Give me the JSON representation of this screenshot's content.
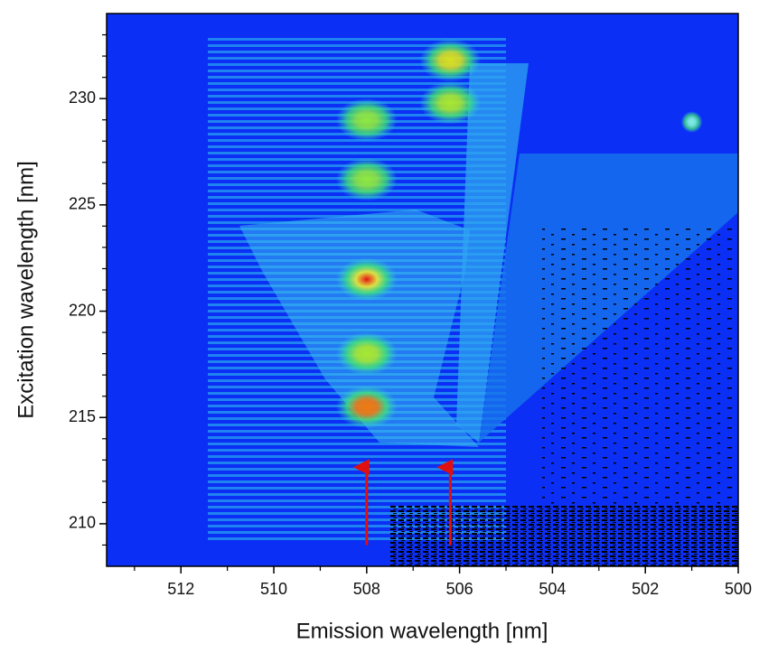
{
  "chart_data": {
    "type": "heatmap",
    "x_label": "Emission wavelength [nm]",
    "y_label": "Excitation wavelength [nm]",
    "xlim": [
      513.6,
      500
    ],
    "ylim": [
      208,
      234
    ],
    "xticks": [
      512,
      510,
      508,
      506,
      504,
      502,
      500
    ],
    "yticks": [
      210,
      215,
      220,
      225,
      230
    ],
    "xminor_ticks": [
      513,
      511,
      509,
      507,
      505,
      503,
      501
    ],
    "yminor_ticks": [
      209,
      211,
      212,
      213,
      214,
      216,
      217,
      218,
      219,
      221,
      222,
      223,
      224,
      226,
      227,
      228,
      229,
      231,
      232,
      233
    ],
    "background_color": "#0b2ff4",
    "peaks": [
      {
        "x": 508,
        "y": 221.5,
        "color": "#e81010"
      },
      {
        "x": 508,
        "y": 215.5,
        "color": "#f07a10"
      },
      {
        "x": 506.2,
        "y": 231.8,
        "color": "#d8e020"
      },
      {
        "x": 506.2,
        "y": 229.8,
        "color": "#a8e830"
      },
      {
        "x": 508,
        "y": 229,
        "color": "#8ee840"
      },
      {
        "x": 508,
        "y": 226.2,
        "color": "#8ee840"
      },
      {
        "x": 508,
        "y": 218,
        "color": "#a8e830"
      },
      {
        "x": 501,
        "y": 228.9,
        "color": "#7ff0e0"
      }
    ],
    "arrow_color": "#e01010",
    "arrows": [
      {
        "x": 508,
        "y_from": 209,
        "y_to": 213
      },
      {
        "x": 506.2,
        "y_from": 209,
        "y_to": 213
      }
    ]
  }
}
